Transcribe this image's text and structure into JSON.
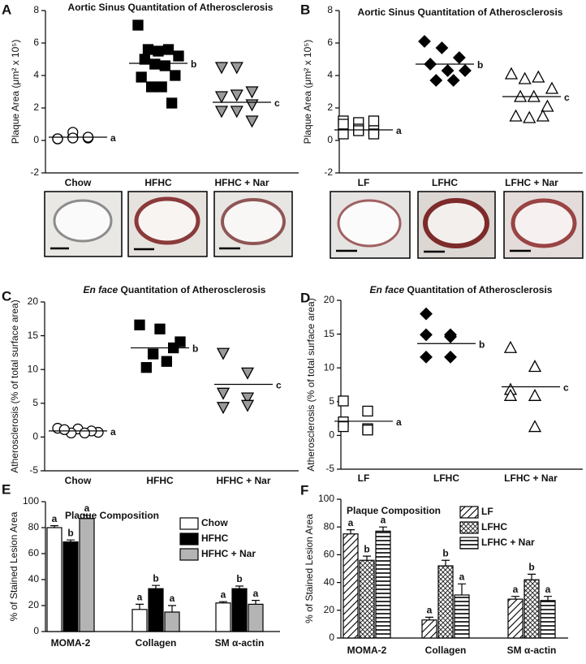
{
  "chart_data": [
    {
      "type": "strip",
      "panel": "A",
      "title": "Aortic Sinus Quantitation of Atherosclerosis",
      "ylabel": "Plaque Area (μm² x 10⁵)",
      "categories": [
        "Chow",
        "HFHC",
        "HFHC + Nar"
      ],
      "ylim": [
        -2,
        8
      ],
      "yticks": [
        -2,
        0,
        2,
        4,
        6,
        8
      ],
      "groups": [
        {
          "marker": "circle",
          "color": "#ffffff",
          "values": [
            0.1,
            0.2,
            0.15,
            0.1,
            0.5,
            0.2,
            0.1,
            0.15,
            0.2
          ],
          "mean": 0.2,
          "letter": "a"
        },
        {
          "marker": "square",
          "color": "#000000",
          "values": [
            7.1,
            5.6,
            5.5,
            5.6,
            5.2,
            5.0,
            4.7,
            4.6,
            4.0,
            3.9,
            3.3,
            3.3,
            2.3
          ],
          "mean": 4.75,
          "letter": "b"
        },
        {
          "marker": "triangle-down",
          "color": "#9a9a9a",
          "values": [
            4.5,
            4.5,
            3.0,
            2.7,
            2.8,
            2.2,
            1.8,
            1.8,
            1.2
          ],
          "mean": 2.35,
          "letter": "c"
        }
      ]
    },
    {
      "type": "strip",
      "panel": "B",
      "title": "Aortic Sinus Quantitation of Atherosclerosis",
      "ylabel": "Plaque Area (μm² x 10⁵)",
      "categories": [
        "LF",
        "LFHC",
        "LFHC + Nar"
      ],
      "ylim": [
        -2,
        8
      ],
      "yticks": [
        -2,
        0,
        2,
        4,
        6,
        8
      ],
      "groups": [
        {
          "marker": "square",
          "color": "#ffffff",
          "values": [
            1.2,
            1.1,
            1.2,
            1.0,
            0.7,
            0.6,
            0.4,
            0.6,
            0.4
          ],
          "mean": 0.65,
          "letter": "a"
        },
        {
          "marker": "diamond",
          "color": "#000000",
          "values": [
            6.1,
            5.7,
            5.1,
            4.7,
            4.3,
            4.3,
            3.7,
            3.7
          ],
          "mean": 4.7,
          "letter": "b"
        },
        {
          "marker": "triangle-up",
          "color": "#ffffff",
          "values": [
            4.1,
            3.8,
            3.9,
            3.2,
            2.7,
            2.7,
            2.1,
            1.5,
            1.4,
            1.5
          ],
          "mean": 2.7,
          "letter": "c"
        }
      ]
    },
    {
      "type": "strip",
      "panel": "C",
      "title_prefix": "En face",
      "title": "Quantitation of Atherosclerosis",
      "ylabel": "Atherosclerosis (% of total surface area)",
      "categories": [
        "Chow",
        "HFHC",
        "HFHC + Nar"
      ],
      "ylim": [
        -5,
        20
      ],
      "yticks": [
        -5,
        0,
        5,
        10,
        15,
        20
      ],
      "groups": [
        {
          "marker": "circle",
          "color": "#ffffff",
          "values": [
            1.3,
            1.2,
            0.7,
            0.6,
            0.9,
            1.1,
            0.6
          ],
          "mean": 0.9,
          "letter": "a"
        },
        {
          "marker": "square",
          "color": "#000000",
          "values": [
            16.6,
            16.0,
            14.1,
            12.3,
            13.2,
            10.3,
            11.2
          ],
          "mean": 13.2,
          "letter": "b"
        },
        {
          "marker": "triangle-down",
          "color": "#9a9a9a",
          "values": [
            12.4,
            9.5,
            6.5,
            5.8,
            4.4,
            4.7
          ],
          "mean": 7.8,
          "letter": "c"
        }
      ]
    },
    {
      "type": "strip",
      "panel": "D",
      "title_prefix": "En face",
      "title": "Quantitation of Atherosclerosis",
      "ylabel": "Atherosclerosis (% of total surface area)",
      "categories": [
        "LF",
        "LFHC",
        "LFHC + Nar"
      ],
      "ylim": [
        -5,
        20
      ],
      "yticks": [
        -5,
        0,
        5,
        10,
        15,
        20
      ],
      "groups": [
        {
          "marker": "square",
          "color": "#ffffff",
          "values": [
            5.1,
            3.6,
            2.0,
            1.0,
            1.3,
            0.8
          ],
          "mean": 2.1,
          "letter": "a"
        },
        {
          "marker": "diamond",
          "color": "#000000",
          "values": [
            18.0,
            14.9,
            14.9,
            14.6,
            11.6,
            11.6
          ],
          "mean": 13.6,
          "letter": "b"
        },
        {
          "marker": "triangle-up",
          "color": "#ffffff",
          "values": [
            13.0,
            10.2,
            6.8,
            5.9,
            5.9,
            1.3
          ],
          "mean": 7.2,
          "letter": "c"
        }
      ]
    },
    {
      "type": "bar",
      "panel": "E",
      "title": "Plaque Composition",
      "ylabel": "% of Stained Lesion Area",
      "categories": [
        "MOMA-2",
        "Collagen",
        "SM α-actin"
      ],
      "ylim": [
        0,
        100
      ],
      "yticks": [
        0,
        20,
        40,
        60,
        80,
        100
      ],
      "series": [
        {
          "name": "Chow",
          "color": "#ffffff",
          "values": [
            80,
            17,
            22
          ],
          "errors": [
            1.5,
            4,
            1
          ],
          "letters": [
            "a",
            "a",
            "a"
          ]
        },
        {
          "name": "HFHC",
          "color": "#000000",
          "values": [
            69,
            33,
            33
          ],
          "errors": [
            1.5,
            2.5,
            2
          ],
          "letters": [
            "b",
            "b",
            "b"
          ]
        },
        {
          "name": "HFHC + Nar",
          "color": "#b4b4b4",
          "values": [
            87,
            15,
            21
          ],
          "errors": [
            2.5,
            5,
            3
          ],
          "letters": [
            "a",
            "a",
            "a"
          ]
        }
      ]
    },
    {
      "type": "bar",
      "panel": "F",
      "title": "Plaque Composition",
      "ylabel": "% of Stained Lesion Area",
      "categories": [
        "MOMA-2",
        "Collagen",
        "SM α-actin"
      ],
      "ylim": [
        0,
        100
      ],
      "yticks": [
        0,
        20,
        40,
        60,
        80,
        100
      ],
      "series": [
        {
          "name": "LF",
          "pattern": "diagonal",
          "values": [
            75,
            13,
            28
          ],
          "errors": [
            3,
            2,
            2
          ],
          "letters": [
            "a",
            "a",
            "a"
          ]
        },
        {
          "name": "LFHC",
          "pattern": "crosshatch",
          "values": [
            56,
            52,
            42
          ],
          "errors": [
            3,
            4,
            4
          ],
          "letters": [
            "b",
            "b",
            "b"
          ]
        },
        {
          "name": "LFHC + Nar",
          "pattern": "horizontal",
          "values": [
            77,
            31,
            27
          ],
          "errors": [
            3,
            8,
            3
          ],
          "letters": [
            "a",
            "a",
            "a"
          ]
        }
      ]
    }
  ]
}
